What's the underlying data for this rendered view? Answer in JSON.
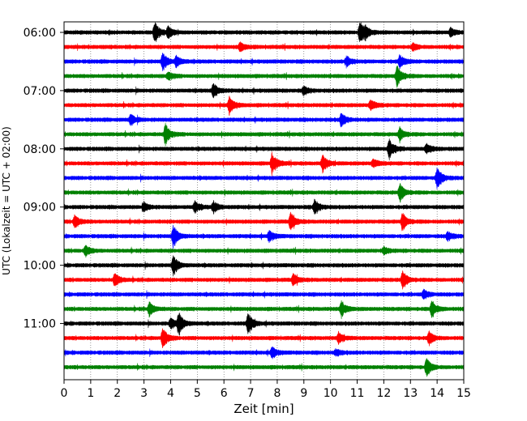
{
  "chart_data": {
    "type": "line",
    "title": "",
    "xlabel": "Zeit  [min]",
    "ylabel": "UTC (Lokalzeit = UTC + 02:00)",
    "xlim": [
      0,
      15
    ],
    "x_ticks": [
      0,
      1,
      2,
      3,
      4,
      5,
      6,
      7,
      8,
      9,
      10,
      11,
      12,
      13,
      14,
      15
    ],
    "y_tick_labels": [
      "06:00",
      "07:00",
      "08:00",
      "09:00",
      "10:00",
      "11:00"
    ],
    "start_time": "06:00",
    "minutes_per_line": 15,
    "grid": "vertical dotted",
    "colors": [
      "#000000",
      "#ff0000",
      "#0000ff",
      "#008000"
    ],
    "traces": [
      {
        "start": "06:00",
        "color": "#000000",
        "events": [
          [
            3.4,
            1.0
          ],
          [
            3.9,
            0.5
          ],
          [
            11.1,
            1.0
          ],
          [
            11.3,
            0.4
          ],
          [
            14.5,
            0.4
          ]
        ]
      },
      {
        "start": "06:15",
        "color": "#ff0000",
        "events": [
          [
            6.6,
            0.4
          ],
          [
            13.1,
            0.3
          ]
        ]
      },
      {
        "start": "06:30",
        "color": "#0000ff",
        "events": [
          [
            3.7,
            0.8
          ],
          [
            4.2,
            0.5
          ],
          [
            10.6,
            0.5
          ],
          [
            12.6,
            0.6
          ]
        ]
      },
      {
        "start": "06:45",
        "color": "#008000",
        "events": [
          [
            3.9,
            0.4
          ],
          [
            12.5,
            1.0
          ]
        ]
      },
      {
        "start": "07:00",
        "color": "#000000",
        "events": [
          [
            5.6,
            0.7
          ],
          [
            9.0,
            0.4
          ]
        ]
      },
      {
        "start": "07:15",
        "color": "#ff0000",
        "events": [
          [
            6.2,
            0.8
          ],
          [
            11.5,
            0.5
          ]
        ]
      },
      {
        "start": "07:30",
        "color": "#0000ff",
        "events": [
          [
            2.5,
            0.5
          ],
          [
            10.4,
            0.6
          ]
        ]
      },
      {
        "start": "07:45",
        "color": "#008000",
        "events": [
          [
            3.8,
            1.0
          ],
          [
            12.6,
            0.6
          ]
        ]
      },
      {
        "start": "08:00",
        "color": "#000000",
        "events": [
          [
            12.2,
            1.0
          ],
          [
            13.6,
            0.5
          ]
        ]
      },
      {
        "start": "08:15",
        "color": "#ff0000",
        "events": [
          [
            7.8,
            1.0
          ],
          [
            9.7,
            0.8
          ],
          [
            11.6,
            0.4
          ]
        ]
      },
      {
        "start": "08:30",
        "color": "#0000ff",
        "events": [
          [
            14.0,
            1.0
          ]
        ]
      },
      {
        "start": "08:45",
        "color": "#008000",
        "events": [
          [
            12.6,
            0.8
          ]
        ]
      },
      {
        "start": "09:00",
        "color": "#000000",
        "events": [
          [
            3.0,
            0.4
          ],
          [
            4.9,
            0.5
          ],
          [
            5.6,
            0.5
          ],
          [
            9.4,
            0.7
          ]
        ]
      },
      {
        "start": "09:15",
        "color": "#ff0000",
        "events": [
          [
            0.4,
            0.6
          ],
          [
            8.5,
            0.8
          ],
          [
            12.7,
            0.8
          ]
        ]
      },
      {
        "start": "09:30",
        "color": "#0000ff",
        "events": [
          [
            4.1,
            1.0
          ],
          [
            7.7,
            0.5
          ],
          [
            14.4,
            0.4
          ]
        ]
      },
      {
        "start": "09:45",
        "color": "#008000",
        "events": [
          [
            0.8,
            0.5
          ],
          [
            12.0,
            0.3
          ]
        ]
      },
      {
        "start": "10:00",
        "color": "#000000",
        "events": [
          [
            4.1,
            0.9
          ]
        ]
      },
      {
        "start": "10:15",
        "color": "#ff0000",
        "events": [
          [
            1.9,
            0.6
          ],
          [
            8.6,
            0.5
          ],
          [
            12.7,
            0.8
          ]
        ]
      },
      {
        "start": "10:30",
        "color": "#0000ff",
        "events": [
          [
            13.5,
            0.4
          ]
        ]
      },
      {
        "start": "10:45",
        "color": "#008000",
        "events": [
          [
            3.2,
            0.6
          ],
          [
            10.4,
            0.7
          ],
          [
            13.8,
            0.8
          ]
        ]
      },
      {
        "start": "11:00",
        "color": "#000000",
        "events": [
          [
            4.3,
            1.0
          ],
          [
            6.9,
            1.0
          ],
          [
            4.0,
            0.5
          ]
        ]
      },
      {
        "start": "11:15",
        "color": "#ff0000",
        "events": [
          [
            3.7,
            1.0
          ],
          [
            10.3,
            0.5
          ],
          [
            13.7,
            0.6
          ]
        ]
      },
      {
        "start": "11:30",
        "color": "#0000ff",
        "events": [
          [
            7.8,
            0.5
          ],
          [
            10.2,
            0.3
          ]
        ]
      },
      {
        "start": "11:45",
        "color": "#008000",
        "events": [
          [
            13.6,
            0.8
          ]
        ]
      }
    ]
  }
}
